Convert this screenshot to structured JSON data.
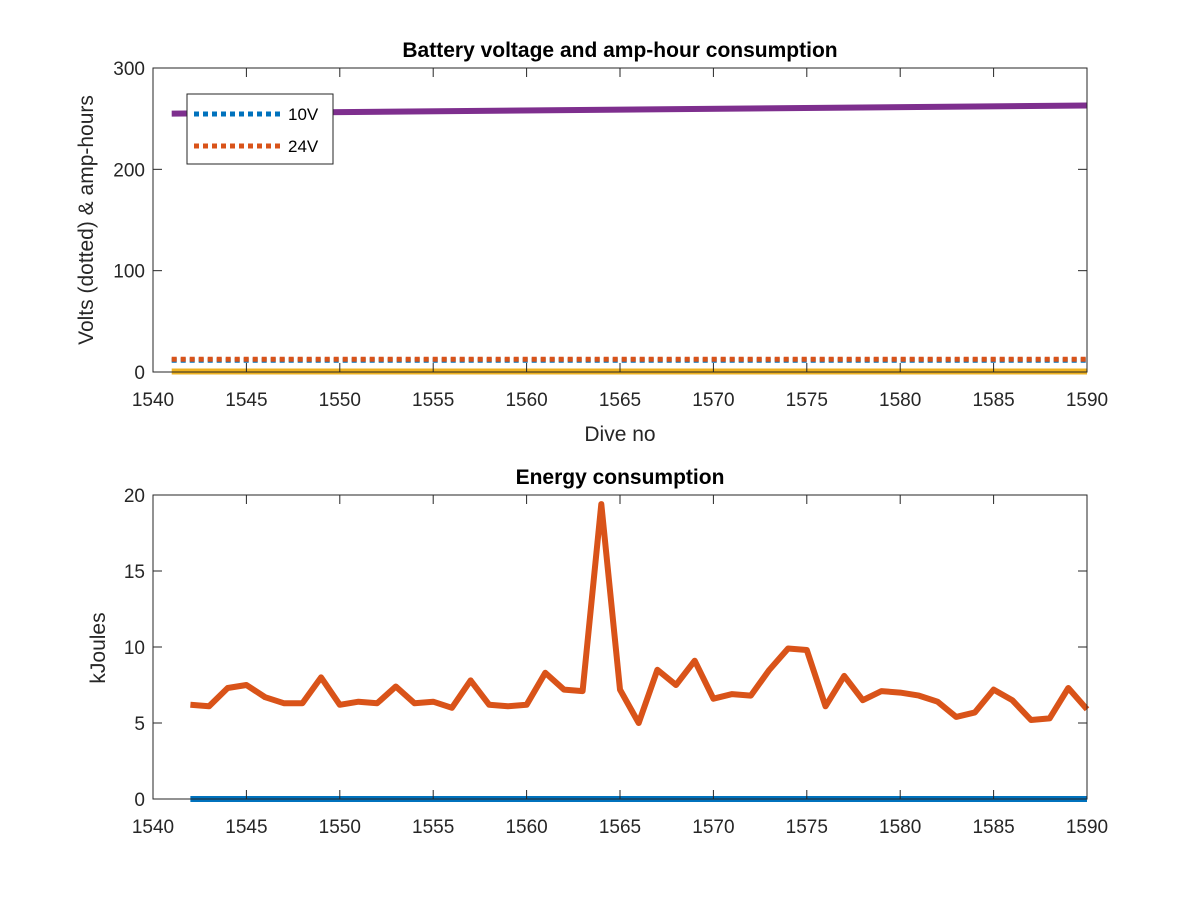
{
  "chart_data": [
    {
      "type": "line",
      "title": "Battery voltage and amp-hour consumption",
      "xlabel": "Dive no",
      "ylabel": "Volts (dotted) & amp-hours",
      "xlim": [
        1540,
        1590
      ],
      "ylim": [
        0,
        300
      ],
      "xticks": [
        "1540",
        "1545",
        "1550",
        "1555",
        "1560",
        "1565",
        "1570",
        "1575",
        "1580",
        "1585",
        "1590"
      ],
      "yticks": [
        "0",
        "100",
        "200",
        "300"
      ],
      "legend_position": "top-left",
      "grid": false,
      "series": [
        {
          "name": "10V",
          "style": "dotted",
          "color": "#0072BD",
          "x": [
            1541,
            1590
          ],
          "y": [
            11.5,
            11.5
          ]
        },
        {
          "name": "24V",
          "style": "dotted",
          "color": "#D95319",
          "x": [
            1541,
            1590
          ],
          "y": [
            12.5,
            12.5
          ]
        },
        {
          "style": "solid",
          "color": "#EDB120",
          "x": [
            1541,
            1590
          ],
          "y": [
            0.5,
            0.5
          ]
        },
        {
          "style": "solid",
          "color": "#7E2F8E",
          "x": [
            1541,
            1590
          ],
          "y": [
            255,
            263
          ]
        }
      ]
    },
    {
      "type": "line",
      "title": "Energy consumption",
      "xlabel": "",
      "ylabel": "kJoules",
      "xlim": [
        1540,
        1590
      ],
      "ylim": [
        0,
        20
      ],
      "xticks": [
        "1540",
        "1545",
        "1550",
        "1555",
        "1560",
        "1565",
        "1570",
        "1575",
        "1580",
        "1585",
        "1590"
      ],
      "yticks": [
        "0",
        "5",
        "10",
        "15",
        "20"
      ],
      "grid": false,
      "series": [
        {
          "style": "solid",
          "color": "#0072BD",
          "x": [
            1542,
            1590
          ],
          "y": [
            0,
            0
          ]
        },
        {
          "style": "solid",
          "color": "#D95319",
          "x": [
            1542,
            1543,
            1544,
            1545,
            1546,
            1547,
            1548,
            1549,
            1550,
            1551,
            1552,
            1553,
            1554,
            1555,
            1556,
            1557,
            1558,
            1559,
            1560,
            1561,
            1562,
            1563,
            1564,
            1565,
            1566,
            1567,
            1568,
            1569,
            1570,
            1571,
            1572,
            1573,
            1574,
            1575,
            1576,
            1577,
            1578,
            1579,
            1580,
            1581,
            1582,
            1583,
            1584,
            1585,
            1586,
            1587,
            1588,
            1589,
            1590
          ],
          "y": [
            6.2,
            6.1,
            7.3,
            7.5,
            6.7,
            6.3,
            6.3,
            8.0,
            6.2,
            6.4,
            6.3,
            7.4,
            6.3,
            6.4,
            6.0,
            7.8,
            6.2,
            6.1,
            6.2,
            8.3,
            7.2,
            7.1,
            19.4,
            7.2,
            5.0,
            8.5,
            7.5,
            9.1,
            6.6,
            6.9,
            6.8,
            8.5,
            9.9,
            9.8,
            6.1,
            8.1,
            6.5,
            7.1,
            7.0,
            6.8,
            6.4,
            5.4,
            5.7,
            7.2,
            6.5,
            5.2,
            5.3,
            7.3,
            5.9
          ]
        }
      ]
    }
  ]
}
